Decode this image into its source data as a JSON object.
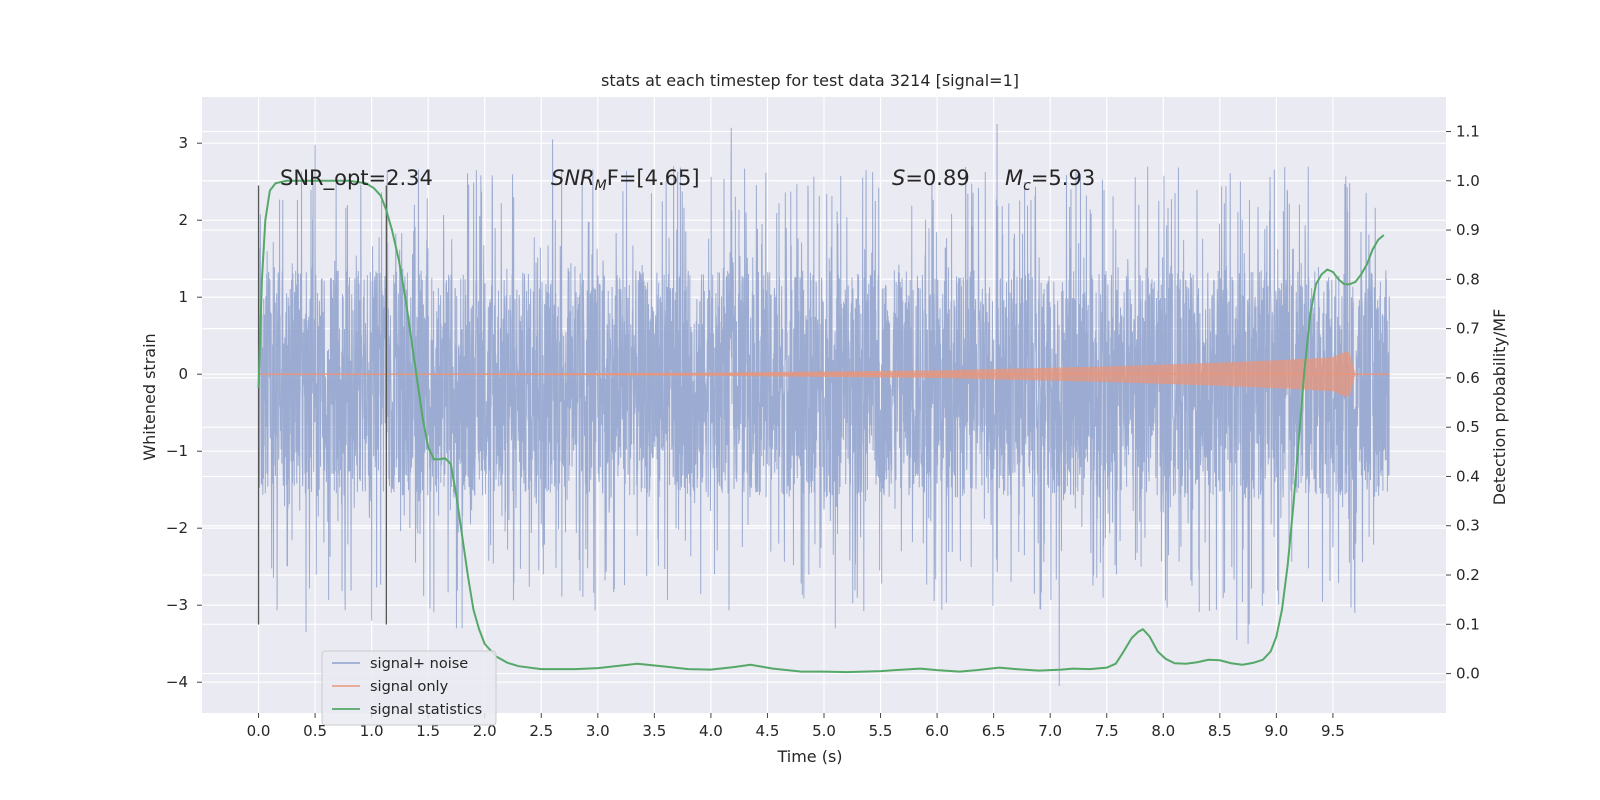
{
  "chart_data": {
    "type": "line",
    "title": "stats at each timestep for test data 3214 [signal=1]",
    "xlabel": "Time (s)",
    "ylabel": "Whitened strain",
    "ylabel_right": "Detection probability/MF",
    "xlim": [
      -0.5,
      10.5
    ],
    "ylim": [
      -4.4,
      3.6
    ],
    "ylim_right": [
      -0.08,
      1.17
    ],
    "grid": true,
    "x_ticks": [
      "0.0",
      "0.5",
      "1.0",
      "1.5",
      "2.0",
      "2.5",
      "3.0",
      "3.5",
      "4.0",
      "4.5",
      "5.0",
      "5.5",
      "6.0",
      "6.5",
      "7.0",
      "7.5",
      "8.0",
      "8.5",
      "9.0",
      "9.5"
    ],
    "y_ticks": [
      "−4",
      "−3",
      "−2",
      "−1",
      "0",
      "1",
      "2",
      "3"
    ],
    "y_ticks_right": [
      "0.0",
      "0.1",
      "0.2",
      "0.3",
      "0.4",
      "0.5",
      "0.6",
      "0.7",
      "0.8",
      "0.9",
      "1.0",
      "1.1"
    ],
    "annotations": {
      "snr_opt": "SNR_opt=2.34",
      "snr_mf_name": "SNR",
      "snr_mf_sub": "M",
      "snr_mf_rest": "F=[4.65]",
      "s_name": "S",
      "s_value": "=0.89",
      "mc_name": "M",
      "mc_sub": "c",
      "mc_value": "=5.93"
    },
    "vertical_lines_x": [
      0.0,
      1.13
    ],
    "legend": {
      "placement": "lower-left",
      "entries": [
        "signal+ noise",
        "signal only",
        "signal statistics"
      ]
    },
    "colors": {
      "noise": "#8da0cb",
      "signal": "#e9967a",
      "stats": "#55a868",
      "axes_bg": "#eaeaf2",
      "vline": "#555555"
    },
    "series": [
      {
        "name": "signal+ noise",
        "x_range": [
          0.0,
          10.0
        ],
        "typical_range": [
          -1.6,
          1.35
        ],
        "extremes": [
          [
            0.42,
            -3.35
          ],
          [
            0.5,
            2.98
          ],
          [
            1.0,
            -3.2
          ],
          [
            1.75,
            -3.3
          ],
          [
            1.8,
            -3.3
          ],
          [
            2.6,
            3.05
          ],
          [
            4.18,
            3.2
          ],
          [
            5.1,
            -3.3
          ],
          [
            6.53,
            3.25
          ],
          [
            7.08,
            -4.05
          ],
          [
            8.65,
            -3.45
          ],
          [
            8.75,
            -3.5
          ],
          [
            8.76,
            -3.25
          ]
        ]
      },
      {
        "name": "signal only",
        "x_range": [
          0.0,
          10.0
        ],
        "envelope": [
          [
            0.0,
            0.0
          ],
          [
            4.0,
            0.02
          ],
          [
            6.0,
            0.05
          ],
          [
            7.5,
            0.1
          ],
          [
            8.5,
            0.15
          ],
          [
            9.0,
            0.18
          ],
          [
            9.5,
            0.22
          ],
          [
            9.62,
            0.3
          ],
          [
            9.65,
            0.27
          ],
          [
            9.7,
            0.0
          ],
          [
            10.0,
            0.0
          ]
        ]
      },
      {
        "name": "signal statistics",
        "axis": "right",
        "x": [
          0.0,
          0.03,
          0.06,
          0.1,
          0.15,
          0.25,
          0.4,
          0.6,
          0.8,
          0.95,
          1.02,
          1.08,
          1.13,
          1.18,
          1.24,
          1.3,
          1.35,
          1.4,
          1.45,
          1.5,
          1.55,
          1.6,
          1.65,
          1.7,
          1.75,
          1.8,
          1.85,
          1.9,
          1.95,
          2.0,
          2.1,
          2.2,
          2.3,
          2.5,
          2.8,
          3.0,
          3.35,
          3.6,
          3.8,
          4.0,
          4.2,
          4.35,
          4.55,
          4.8,
          5.0,
          5.2,
          5.5,
          5.7,
          5.85,
          6.0,
          6.2,
          6.35,
          6.55,
          6.7,
          6.9,
          7.1,
          7.2,
          7.35,
          7.5,
          7.58,
          7.65,
          7.72,
          7.78,
          7.82,
          7.88,
          7.95,
          8.02,
          8.1,
          8.2,
          8.3,
          8.4,
          8.5,
          8.6,
          8.7,
          8.8,
          8.88,
          8.95,
          9.0,
          9.05,
          9.1,
          9.15,
          9.2,
          9.25,
          9.3,
          9.35,
          9.4,
          9.45,
          9.5,
          9.55,
          9.6,
          9.65,
          9.7,
          9.75,
          9.8,
          9.85,
          9.9,
          9.95
        ],
        "values": [
          0.58,
          0.8,
          0.92,
          0.98,
          0.995,
          1.0,
          1.0,
          1.0,
          1.0,
          0.995,
          0.985,
          0.97,
          0.94,
          0.9,
          0.84,
          0.76,
          0.68,
          0.6,
          0.52,
          0.46,
          0.435,
          0.435,
          0.437,
          0.425,
          0.36,
          0.28,
          0.2,
          0.13,
          0.09,
          0.06,
          0.035,
          0.022,
          0.015,
          0.009,
          0.009,
          0.011,
          0.02,
          0.014,
          0.009,
          0.008,
          0.013,
          0.018,
          0.01,
          0.004,
          0.004,
          0.003,
          0.005,
          0.008,
          0.01,
          0.007,
          0.004,
          0.007,
          0.012,
          0.009,
          0.006,
          0.008,
          0.01,
          0.009,
          0.012,
          0.02,
          0.045,
          0.072,
          0.085,
          0.09,
          0.075,
          0.045,
          0.03,
          0.021,
          0.02,
          0.023,
          0.028,
          0.027,
          0.021,
          0.018,
          0.022,
          0.028,
          0.045,
          0.075,
          0.13,
          0.22,
          0.34,
          0.48,
          0.62,
          0.73,
          0.79,
          0.81,
          0.82,
          0.815,
          0.8,
          0.79,
          0.79,
          0.795,
          0.81,
          0.83,
          0.86,
          0.88,
          0.89
        ]
      }
    ]
  }
}
